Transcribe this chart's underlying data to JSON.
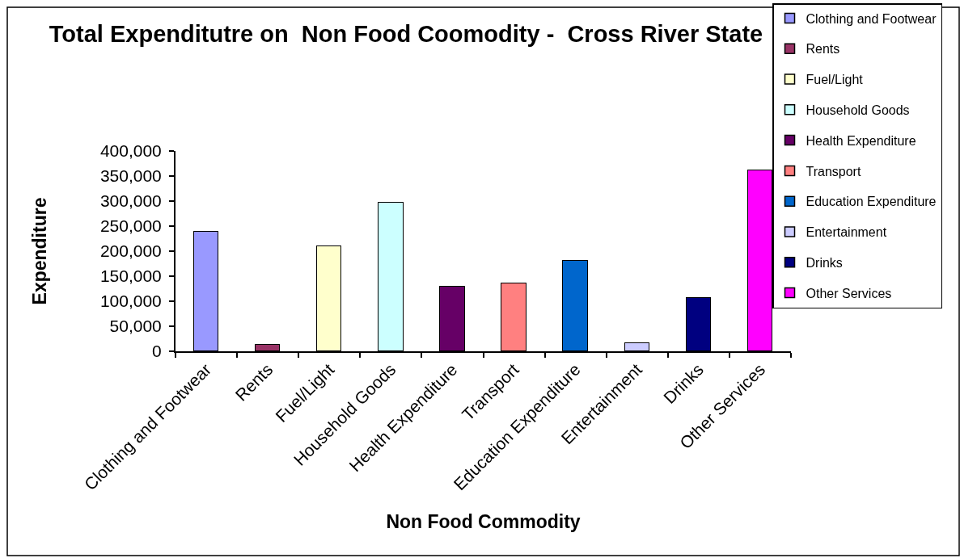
{
  "chart_data": {
    "type": "bar",
    "title": "Total Expenditutre on  Non Food Coomodity -  Cross River State",
    "xlabel": "Non Food Commodity",
    "ylabel": "Expenditure",
    "categories": [
      "Clothing and Footwear",
      "Rents",
      "Fuel/Light",
      "Household Goods",
      "Health Expenditure",
      "Transport",
      "Education Expenditure",
      "Entertainment",
      "Drinks",
      "Other Services"
    ],
    "stacked": true,
    "series": [
      {
        "name": "Clothing and Footwear",
        "color": "#9999ff",
        "values": [
          238000,
          null,
          null,
          null,
          null,
          null,
          null,
          null,
          null,
          null
        ]
      },
      {
        "name": "Rents",
        "color": "#993366",
        "values": [
          null,
          13000,
          null,
          null,
          null,
          null,
          null,
          null,
          null,
          null
        ]
      },
      {
        "name": "Fuel/Light",
        "color": "#ffffcc",
        "values": [
          null,
          null,
          209000,
          null,
          null,
          null,
          null,
          null,
          null,
          null
        ]
      },
      {
        "name": "Household Goods",
        "color": "#ccffff",
        "values": [
          null,
          null,
          null,
          297000,
          null,
          null,
          null,
          null,
          null,
          null
        ]
      },
      {
        "name": "Health Expenditure",
        "color": "#660066",
        "values": [
          null,
          null,
          null,
          null,
          129000,
          null,
          null,
          null,
          null,
          null
        ]
      },
      {
        "name": "Transport",
        "color": "#ff8080",
        "values": [
          null,
          null,
          null,
          null,
          null,
          136000,
          null,
          null,
          null,
          null
        ]
      },
      {
        "name": "Education Expenditure",
        "color": "#0066cc",
        "values": [
          null,
          null,
          null,
          null,
          null,
          null,
          180000,
          null,
          null,
          null
        ]
      },
      {
        "name": "Entertainment",
        "color": "#ccccff",
        "values": [
          null,
          null,
          null,
          null,
          null,
          null,
          null,
          16000,
          null,
          null
        ]
      },
      {
        "name": "Drinks",
        "color": "#000080",
        "values": [
          null,
          null,
          null,
          null,
          null,
          null,
          null,
          null,
          106000,
          null
        ]
      },
      {
        "name": "Other Services",
        "color": "#ff00ff",
        "values": [
          null,
          null,
          null,
          null,
          null,
          null,
          null,
          null,
          null,
          361000
        ]
      }
    ],
    "ylim": [
      0,
      400000
    ],
    "yticks": [
      0,
      {
        "value": 50000,
        "label": "50,000"
      },
      {
        "value": 100000,
        "label": "100,000"
      },
      {
        "value": 150000,
        "label": "150,000"
      },
      {
        "value": 200000,
        "label": "200,000"
      },
      {
        "value": 250000,
        "label": "250,000"
      },
      {
        "value": 300000,
        "label": "300,000"
      },
      {
        "value": 350000,
        "label": "350,000"
      },
      {
        "value": 400000,
        "label": "400,000"
      }
    ],
    "grid": false,
    "legend": "top right"
  }
}
